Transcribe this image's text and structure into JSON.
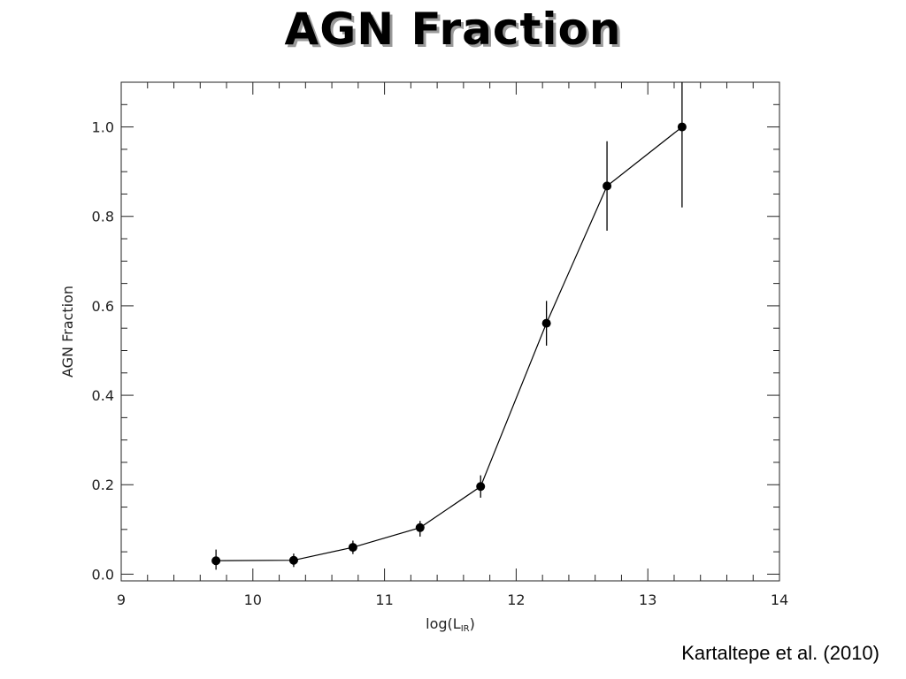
{
  "slide": {
    "title": "AGN Fraction",
    "citation": "Kartaltepe et al. (2010)"
  },
  "chart_data": {
    "type": "line",
    "title": "AGN Fraction",
    "xlabel_main": "log(L",
    "xlabel_sub": "IR",
    "xlabel_close": ")",
    "ylabel": "AGN Fraction",
    "xlim": [
      9,
      14
    ],
    "ylim": [
      -0.015,
      1.1
    ],
    "x_ticks": [
      9,
      10,
      11,
      12,
      13,
      14
    ],
    "x_tick_labels": [
      "9",
      "10",
      "11",
      "12",
      "13",
      "14"
    ],
    "y_ticks": [
      0.0,
      0.2,
      0.4,
      0.6,
      0.8,
      1.0
    ],
    "y_tick_labels": [
      "0.0",
      "0.2",
      "0.4",
      "0.6",
      "0.8",
      "1.0"
    ],
    "grid": false,
    "series": [
      {
        "x": [
          9.72,
          10.31,
          10.76,
          11.27,
          11.73,
          12.23,
          12.69,
          13.26
        ],
        "y": [
          0.03,
          0.031,
          0.06,
          0.104,
          0.196,
          0.561,
          0.868,
          1.0
        ],
        "y_err_low": [
          0.02,
          0.015,
          0.015,
          0.02,
          0.025,
          0.05,
          0.1,
          0.18
        ],
        "y_err_high": [
          0.025,
          0.015,
          0.015,
          0.015,
          0.025,
          0.05,
          0.1,
          0.12
        ]
      }
    ],
    "colors": {
      "line": "#000000",
      "marker": "#000000",
      "axes": "#222222"
    }
  }
}
